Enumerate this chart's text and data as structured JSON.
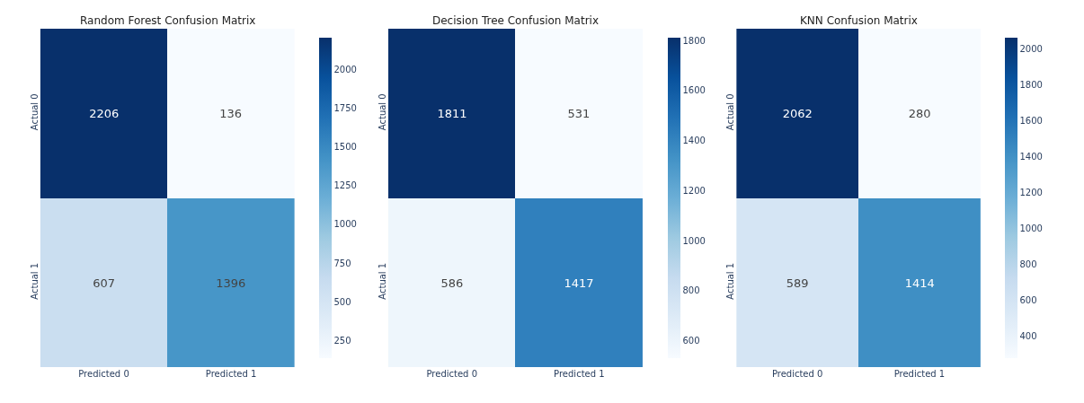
{
  "chart_data": [
    {
      "type": "heatmap",
      "title": "Random Forest Confusion Matrix",
      "categories": [
        "Predicted 0",
        "Predicted 1"
      ],
      "y_categories": [
        "Actual 0",
        "Actual 1"
      ],
      "cells": [
        [
          2206,
          136
        ],
        [
          607,
          1396
        ]
      ],
      "data_labels": true,
      "clim": [
        136,
        2206
      ],
      "cticks": [
        250,
        500,
        750,
        1000,
        1250,
        1500,
        1750,
        2000
      ]
    },
    {
      "type": "heatmap",
      "title": "Decision Tree Confusion Matrix",
      "categories": [
        "Predicted 0",
        "Predicted 1"
      ],
      "y_categories": [
        "Actual 0",
        "Actual 1"
      ],
      "cells": [
        [
          1811,
          531
        ],
        [
          586,
          1417
        ]
      ],
      "data_labels": true,
      "clim": [
        531,
        1811
      ],
      "cticks": [
        600,
        800,
        1000,
        1200,
        1400,
        1600,
        1800
      ]
    },
    {
      "type": "heatmap",
      "title": "KNN Confusion Matrix",
      "categories": [
        "Predicted 0",
        "Predicted 1"
      ],
      "y_categories": [
        "Actual 0",
        "Actual 1"
      ],
      "cells": [
        [
          2062,
          280
        ],
        [
          589,
          1414
        ]
      ],
      "data_labels": true,
      "clim": [
        280,
        2062
      ],
      "cticks": [
        400,
        600,
        800,
        1000,
        1200,
        1400,
        1600,
        1800,
        2000
      ]
    }
  ]
}
